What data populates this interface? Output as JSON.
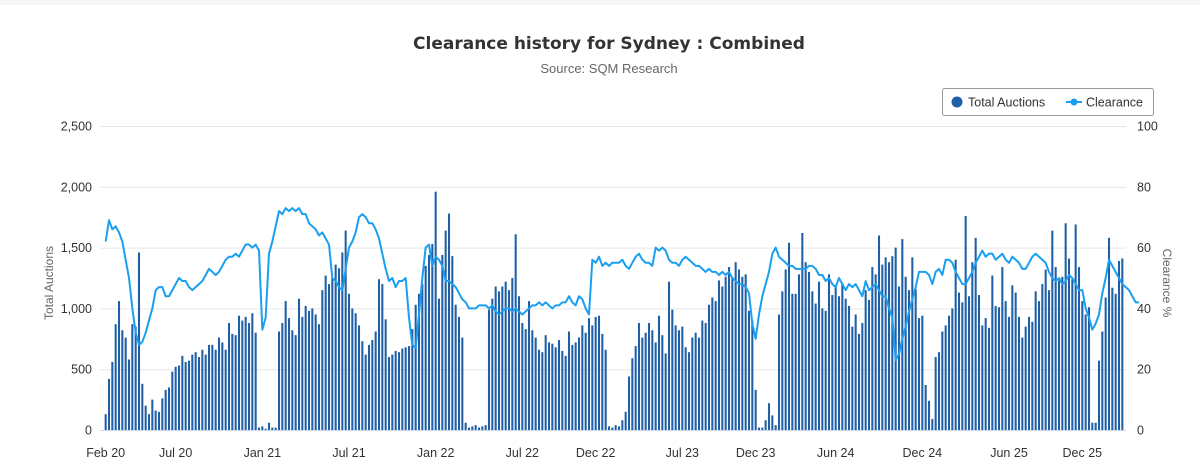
{
  "chart_data": {
    "type": "bar+line",
    "title": "Clearance history for Sydney : Combined",
    "subtitle": "Source: SQM Research",
    "xlabel": "",
    "ylabel_left": "Total Auctions",
    "ylabel_right": "Clearance %",
    "ylim_left": [
      0,
      2500
    ],
    "ylim_right": [
      0,
      100
    ],
    "yticks_left": [
      "0",
      "500",
      "1,000",
      "1,500",
      "2,000",
      "2,500"
    ],
    "yticks_right": [
      "0",
      "20",
      "40",
      "60",
      "80",
      "100"
    ],
    "xticks": [
      "Feb 20",
      "Jul 20",
      "Jan 21",
      "Jul 21",
      "Jan 22",
      "Jul 22",
      "Dec 22",
      "Jul 23",
      "Dec 23",
      "Jun 24",
      "Dec 24",
      "Jun 25",
      "Dec 25"
    ],
    "xtick_week_index": [
      0,
      21,
      47,
      73,
      99,
      125,
      147,
      173,
      195,
      219,
      245,
      271,
      293
    ],
    "grid": true,
    "legend_position": "top-right",
    "series": [
      {
        "name": "Total Auctions",
        "type": "bar",
        "color": "#1f5fa6",
        "values": [
          130,
          420,
          560,
          870,
          1060,
          820,
          760,
          580,
          870,
          850,
          1460,
          380,
          200,
          130,
          250,
          160,
          150,
          260,
          330,
          350,
          480,
          520,
          530,
          610,
          560,
          570,
          620,
          640,
          600,
          660,
          620,
          700,
          700,
          660,
          760,
          720,
          660,
          880,
          790,
          780,
          940,
          900,
          930,
          880,
          960,
          800,
          20,
          30,
          10,
          60,
          20,
          20,
          810,
          880,
          1060,
          920,
          820,
          780,
          1080,
          930,
          1020,
          980,
          1000,
          950,
          870,
          1150,
          1270,
          1200,
          1250,
          1360,
          1330,
          1460,
          1640,
          1120,
          1000,
          960,
          860,
          730,
          620,
          700,
          740,
          810,
          1240,
          1200,
          910,
          600,
          620,
          650,
          640,
          670,
          680,
          690,
          830,
          1030,
          1120,
          1200,
          1350,
          1440,
          1530,
          1960,
          1080,
          1440,
          1640,
          1780,
          1430,
          1030,
          930,
          760,
          60,
          20,
          30,
          40,
          20,
          30,
          40,
          990,
          1080,
          1180,
          1140,
          1180,
          1220,
          1150,
          1250,
          1610,
          1100,
          880,
          830,
          1060,
          820,
          760,
          660,
          640,
          780,
          720,
          710,
          680,
          740,
          650,
          610,
          810,
          700,
          720,
          760,
          860,
          800,
          920,
          860,
          930,
          940,
          790,
          660,
          30,
          20,
          40,
          30,
          80,
          150,
          440,
          590,
          690,
          880,
          760,
          800,
          880,
          820,
          720,
          940,
          780,
          630,
          1220,
          990,
          860,
          820,
          850,
          680,
          640,
          760,
          800,
          760,
          900,
          880,
          1030,
          1090,
          1060,
          1230,
          1180,
          1260,
          1340,
          1250,
          1380,
          1320,
          1260,
          1280,
          980,
          900,
          330,
          20,
          20,
          80,
          220,
          120,
          40,
          950,
          1140,
          1320,
          1540,
          1120,
          1120,
          1280,
          1620,
          1380,
          1300,
          1140,
          1040,
          1220,
          1000,
          980,
          1280,
          1110,
          1190,
          1100,
          1210,
          1080,
          1020,
          850,
          950,
          790,
          880,
          1150,
          1070,
          1340,
          1280,
          1600,
          1360,
          1420,
          1380,
          1430,
          1500,
          1180,
          1570,
          1260,
          1150,
          1420,
          1160,
          920,
          940,
          370,
          240,
          90,
          600,
          640,
          810,
          860,
          940,
          1000,
          1400,
          1130,
          1050,
          1760,
          1100,
          1380,
          1580,
          1110,
          860,
          920,
          840,
          1270,
          1020,
          1010,
          1340,
          1060,
          930,
          1190,
          1130,
          930,
          760,
          850,
          930,
          890,
          1140,
          1060,
          1200,
          1320,
          1150,
          1640,
          1340,
          1230,
          1260,
          1700,
          1410,
          1240,
          1690,
          1340,
          1060,
          950,
          1010,
          60,
          60,
          570,
          810,
          1090,
          1580,
          1170,
          1120,
          1390,
          1410
        ]
      },
      {
        "name": "Clearance",
        "type": "line",
        "color": "#1a9ff0",
        "values": [
          62,
          69,
          66,
          67,
          65,
          62,
          56,
          50,
          40,
          32,
          28,
          29,
          32,
          36,
          40,
          46,
          47,
          47,
          44,
          44,
          46,
          48,
          50,
          49,
          49,
          47,
          46,
          47,
          48,
          49,
          51,
          53,
          52,
          51,
          52,
          54,
          56,
          57,
          57,
          58,
          57,
          59,
          61,
          61,
          60,
          61,
          59,
          33,
          37,
          58,
          62,
          67,
          72,
          71,
          73,
          72,
          73,
          72,
          73,
          71,
          71,
          68,
          67,
          66,
          64,
          65,
          63,
          61,
          50,
          49,
          47,
          46,
          53,
          60,
          62,
          65,
          70,
          71,
          70,
          68,
          68,
          66,
          63,
          58,
          53,
          49,
          50,
          47,
          49,
          49,
          50,
          37,
          28,
          27,
          38,
          50,
          60,
          61,
          54,
          57,
          56,
          54,
          49,
          49,
          48,
          47,
          45,
          43,
          42,
          40,
          40,
          40,
          41,
          41,
          41,
          40,
          41,
          39,
          38,
          39,
          40,
          40,
          39,
          40,
          39,
          38,
          39,
          40,
          41,
          41,
          42,
          41,
          42,
          41,
          40,
          41,
          41,
          42,
          42,
          44,
          42,
          41,
          44,
          43,
          40,
          38,
          56,
          55,
          57,
          54,
          55,
          54,
          55,
          55,
          55,
          56,
          54,
          53,
          55,
          57,
          58,
          56,
          55,
          55,
          54,
          60,
          59,
          60,
          59,
          56,
          55,
          55,
          54,
          56,
          57,
          56,
          55,
          54,
          54,
          53,
          52,
          53,
          52,
          52,
          51,
          52,
          51,
          52,
          50,
          49,
          48,
          48,
          47,
          45,
          35,
          30,
          38,
          44,
          48,
          52,
          58,
          60,
          57,
          56,
          55,
          54,
          54,
          53,
          53,
          53,
          53,
          54,
          54,
          53,
          51,
          51,
          49,
          50,
          48,
          47,
          50,
          48,
          46,
          48,
          47,
          48,
          46,
          44,
          49,
          46,
          47,
          48,
          46,
          44,
          44,
          40,
          37,
          23,
          25,
          30,
          34,
          39,
          43,
          47,
          52,
          52,
          52,
          51,
          48,
          52,
          53,
          51,
          56,
          56,
          55,
          52,
          50,
          48,
          48,
          50,
          52,
          55,
          57,
          59,
          57,
          58,
          58,
          56,
          57,
          58,
          56,
          55,
          57,
          56,
          55,
          53,
          53,
          55,
          57,
          58,
          57,
          56,
          55,
          52,
          50,
          49,
          50,
          48,
          49,
          51,
          50,
          48,
          46,
          46,
          40,
          37,
          33,
          35,
          38,
          45,
          50,
          56,
          54,
          52,
          50,
          48,
          47,
          46,
          44,
          42,
          42
        ]
      }
    ]
  }
}
